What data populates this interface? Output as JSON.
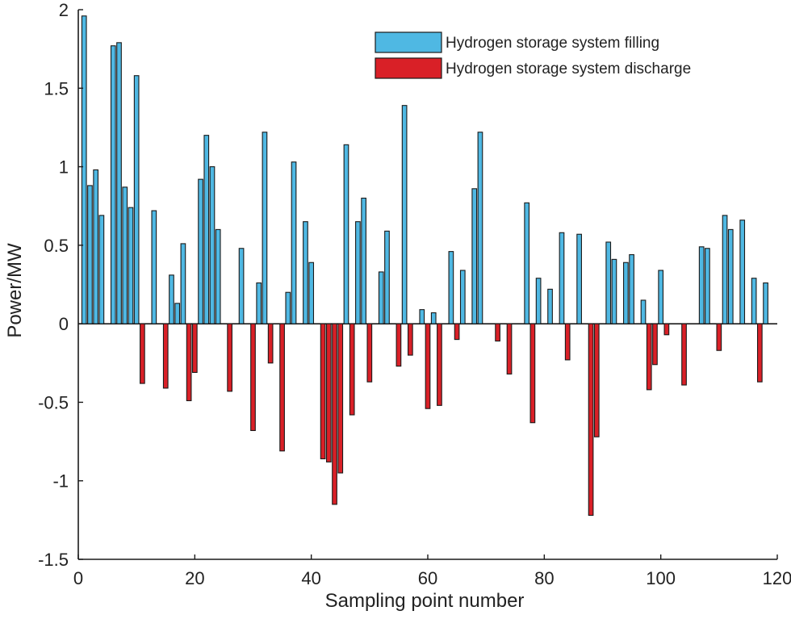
{
  "chart_data": {
    "type": "bar",
    "title": "",
    "xlabel": "Sampling point number",
    "ylabel": "Power/MW",
    "xlim": [
      0,
      120
    ],
    "ylim": [
      -1.5,
      2
    ],
    "xticks": [
      0,
      20,
      40,
      60,
      80,
      100,
      120
    ],
    "yticks": [
      -1.5,
      -1,
      -0.5,
      0,
      0.5,
      1,
      1.5,
      2
    ],
    "legend_position": "top-right",
    "colors": {
      "filling": "#4fb8e3",
      "discharge": "#d92027",
      "edge": "#1a1a1a"
    },
    "series": [
      {
        "name": "Hydrogen storage system filling",
        "x": [
          1,
          2,
          3,
          4,
          6,
          7,
          8,
          9,
          10,
          13,
          16,
          17,
          18,
          21,
          22,
          23,
          24,
          28,
          31,
          32,
          36,
          37,
          39,
          40,
          46,
          48,
          49,
          52,
          53,
          56,
          59,
          61,
          64,
          66,
          68,
          69,
          77,
          79,
          81,
          83,
          86,
          91,
          92,
          94,
          95,
          97,
          100,
          107,
          108,
          111,
          112,
          114,
          116,
          118
        ],
        "values": [
          1.96,
          0.88,
          0.98,
          0.69,
          1.77,
          1.79,
          0.87,
          0.74,
          1.58,
          0.72,
          0.31,
          0.13,
          0.51,
          0.92,
          1.2,
          1.0,
          0.6,
          0.48,
          0.26,
          1.22,
          0.2,
          1.03,
          0.65,
          0.39,
          1.14,
          0.65,
          0.8,
          0.33,
          0.59,
          1.39,
          0.09,
          0.07,
          0.46,
          0.34,
          0.86,
          1.22,
          0.77,
          0.29,
          0.22,
          0.58,
          0.57,
          0.52,
          0.41,
          0.39,
          0.44,
          0.15,
          0.34,
          0.49,
          0.48,
          0.69,
          0.6,
          0.66,
          0.29,
          0.26
        ]
      },
      {
        "name": "Hydrogen storage system discharge",
        "x": [
          11,
          15,
          19,
          20,
          26,
          30,
          33,
          35,
          42,
          43,
          44,
          45,
          47,
          50,
          55,
          57,
          60,
          62,
          65,
          72,
          74,
          78,
          84,
          88,
          89,
          98,
          99,
          101,
          104,
          110,
          117
        ],
        "values": [
          -0.38,
          -0.41,
          -0.49,
          -0.31,
          -0.43,
          -0.68,
          -0.25,
          -0.81,
          -0.86,
          -0.88,
          -1.15,
          -0.95,
          -0.58,
          -0.37,
          -0.27,
          -0.2,
          -0.54,
          -0.52,
          -0.1,
          -0.11,
          -0.32,
          -0.63,
          -0.23,
          -1.22,
          -0.72,
          -0.42,
          -0.26,
          -0.07,
          -0.39,
          -0.17,
          -0.37
        ]
      }
    ]
  }
}
